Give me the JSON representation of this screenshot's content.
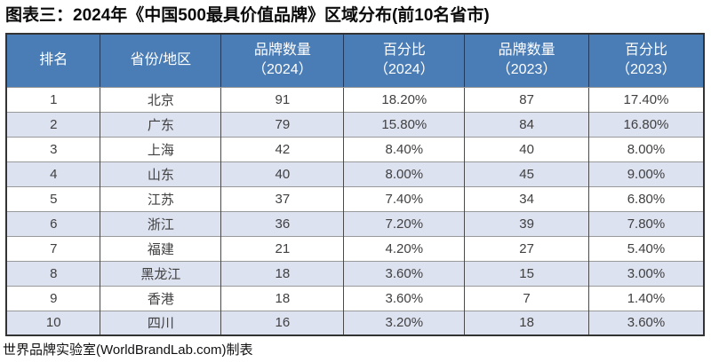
{
  "title": "图表三：2024年《中国500最具价值品牌》区域分布(前10名省市)",
  "footer": "世界品牌实验室(WorldBrandLab.com)制表",
  "header_columns": [
    {
      "line1": "排名"
    },
    {
      "line1": "省份/地区"
    },
    {
      "line1": "品牌数量",
      "line2": "（2024）"
    },
    {
      "line1": "百分比",
      "line2": "（2024）"
    },
    {
      "line1": "品牌数量",
      "line2": "（2023）"
    },
    {
      "line1": "百分比",
      "line2": "（2023）"
    }
  ],
  "colors": {
    "header_bg": "#4A7CB5",
    "header_text": "#FFFFFF",
    "header_separator": "#1F3A60",
    "alt_row_bg": "#DDE2F0",
    "row_border": "#999999",
    "column_border": "#4A4A4A",
    "outer_border": "#333333",
    "body_text": "#404040",
    "title_text": "#0A0A0A"
  },
  "chart_data": {
    "type": "table",
    "title": "图表三：2024年《中国500最具价值品牌》区域分布(前10名省市)",
    "columns": [
      "排名",
      "省份/地区",
      "品牌数量（2024）",
      "百分比（2024）",
      "品牌数量（2023）",
      "百分比（2023）"
    ],
    "rows": [
      [
        1,
        "北京",
        91,
        "18.20%",
        87,
        "17.40%"
      ],
      [
        2,
        "广东",
        79,
        "15.80%",
        84,
        "16.80%"
      ],
      [
        3,
        "上海",
        42,
        "8.40%",
        40,
        "8.00%"
      ],
      [
        4,
        "山东",
        40,
        "8.00%",
        45,
        "9.00%"
      ],
      [
        5,
        "江苏",
        37,
        "7.40%",
        34,
        "6.80%"
      ],
      [
        6,
        "浙江",
        36,
        "7.20%",
        39,
        "7.80%"
      ],
      [
        7,
        "福建",
        21,
        "4.20%",
        27,
        "5.40%"
      ],
      [
        8,
        "黑龙江",
        18,
        "3.60%",
        15,
        "3.00%"
      ],
      [
        9,
        "香港",
        18,
        "3.60%",
        7,
        "1.40%"
      ],
      [
        10,
        "四川",
        16,
        "3.20%",
        18,
        "3.60%"
      ]
    ],
    "source": "世界品牌实验室(WorldBrandLab.com)制表"
  }
}
